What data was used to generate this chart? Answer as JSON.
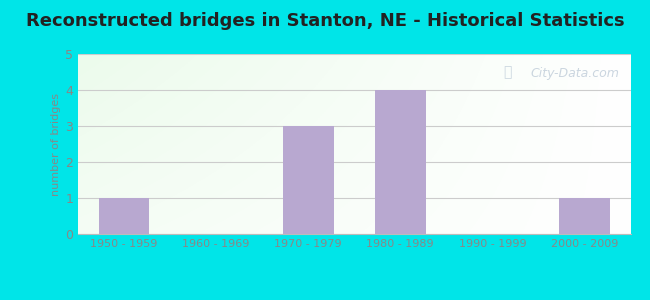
{
  "title": "Reconstructed bridges in Stanton, NE - Historical Statistics",
  "categories": [
    "1950 - 1959",
    "1960 - 1969",
    "1970 - 1979",
    "1980 - 1989",
    "1990 - 1999",
    "2000 - 2009"
  ],
  "values": [
    1,
    0,
    3,
    4,
    0,
    1
  ],
  "bar_color": "#b8a8d0",
  "ylabel": "number of bridges",
  "ylim": [
    0,
    5
  ],
  "yticks": [
    0,
    1,
    2,
    3,
    4,
    5
  ],
  "bg_outer": "#00e5e8",
  "bg_plot_color1": "#c8e8c8",
  "bg_plot_color2": "#f0f8f0",
  "title_fontsize": 13,
  "title_color": "#222222",
  "tick_color": "#888888",
  "grid_color": "#cccccc",
  "watermark": "City-Data.com",
  "watermark_color": "#aabbcc",
  "watermark_alpha": 0.6
}
